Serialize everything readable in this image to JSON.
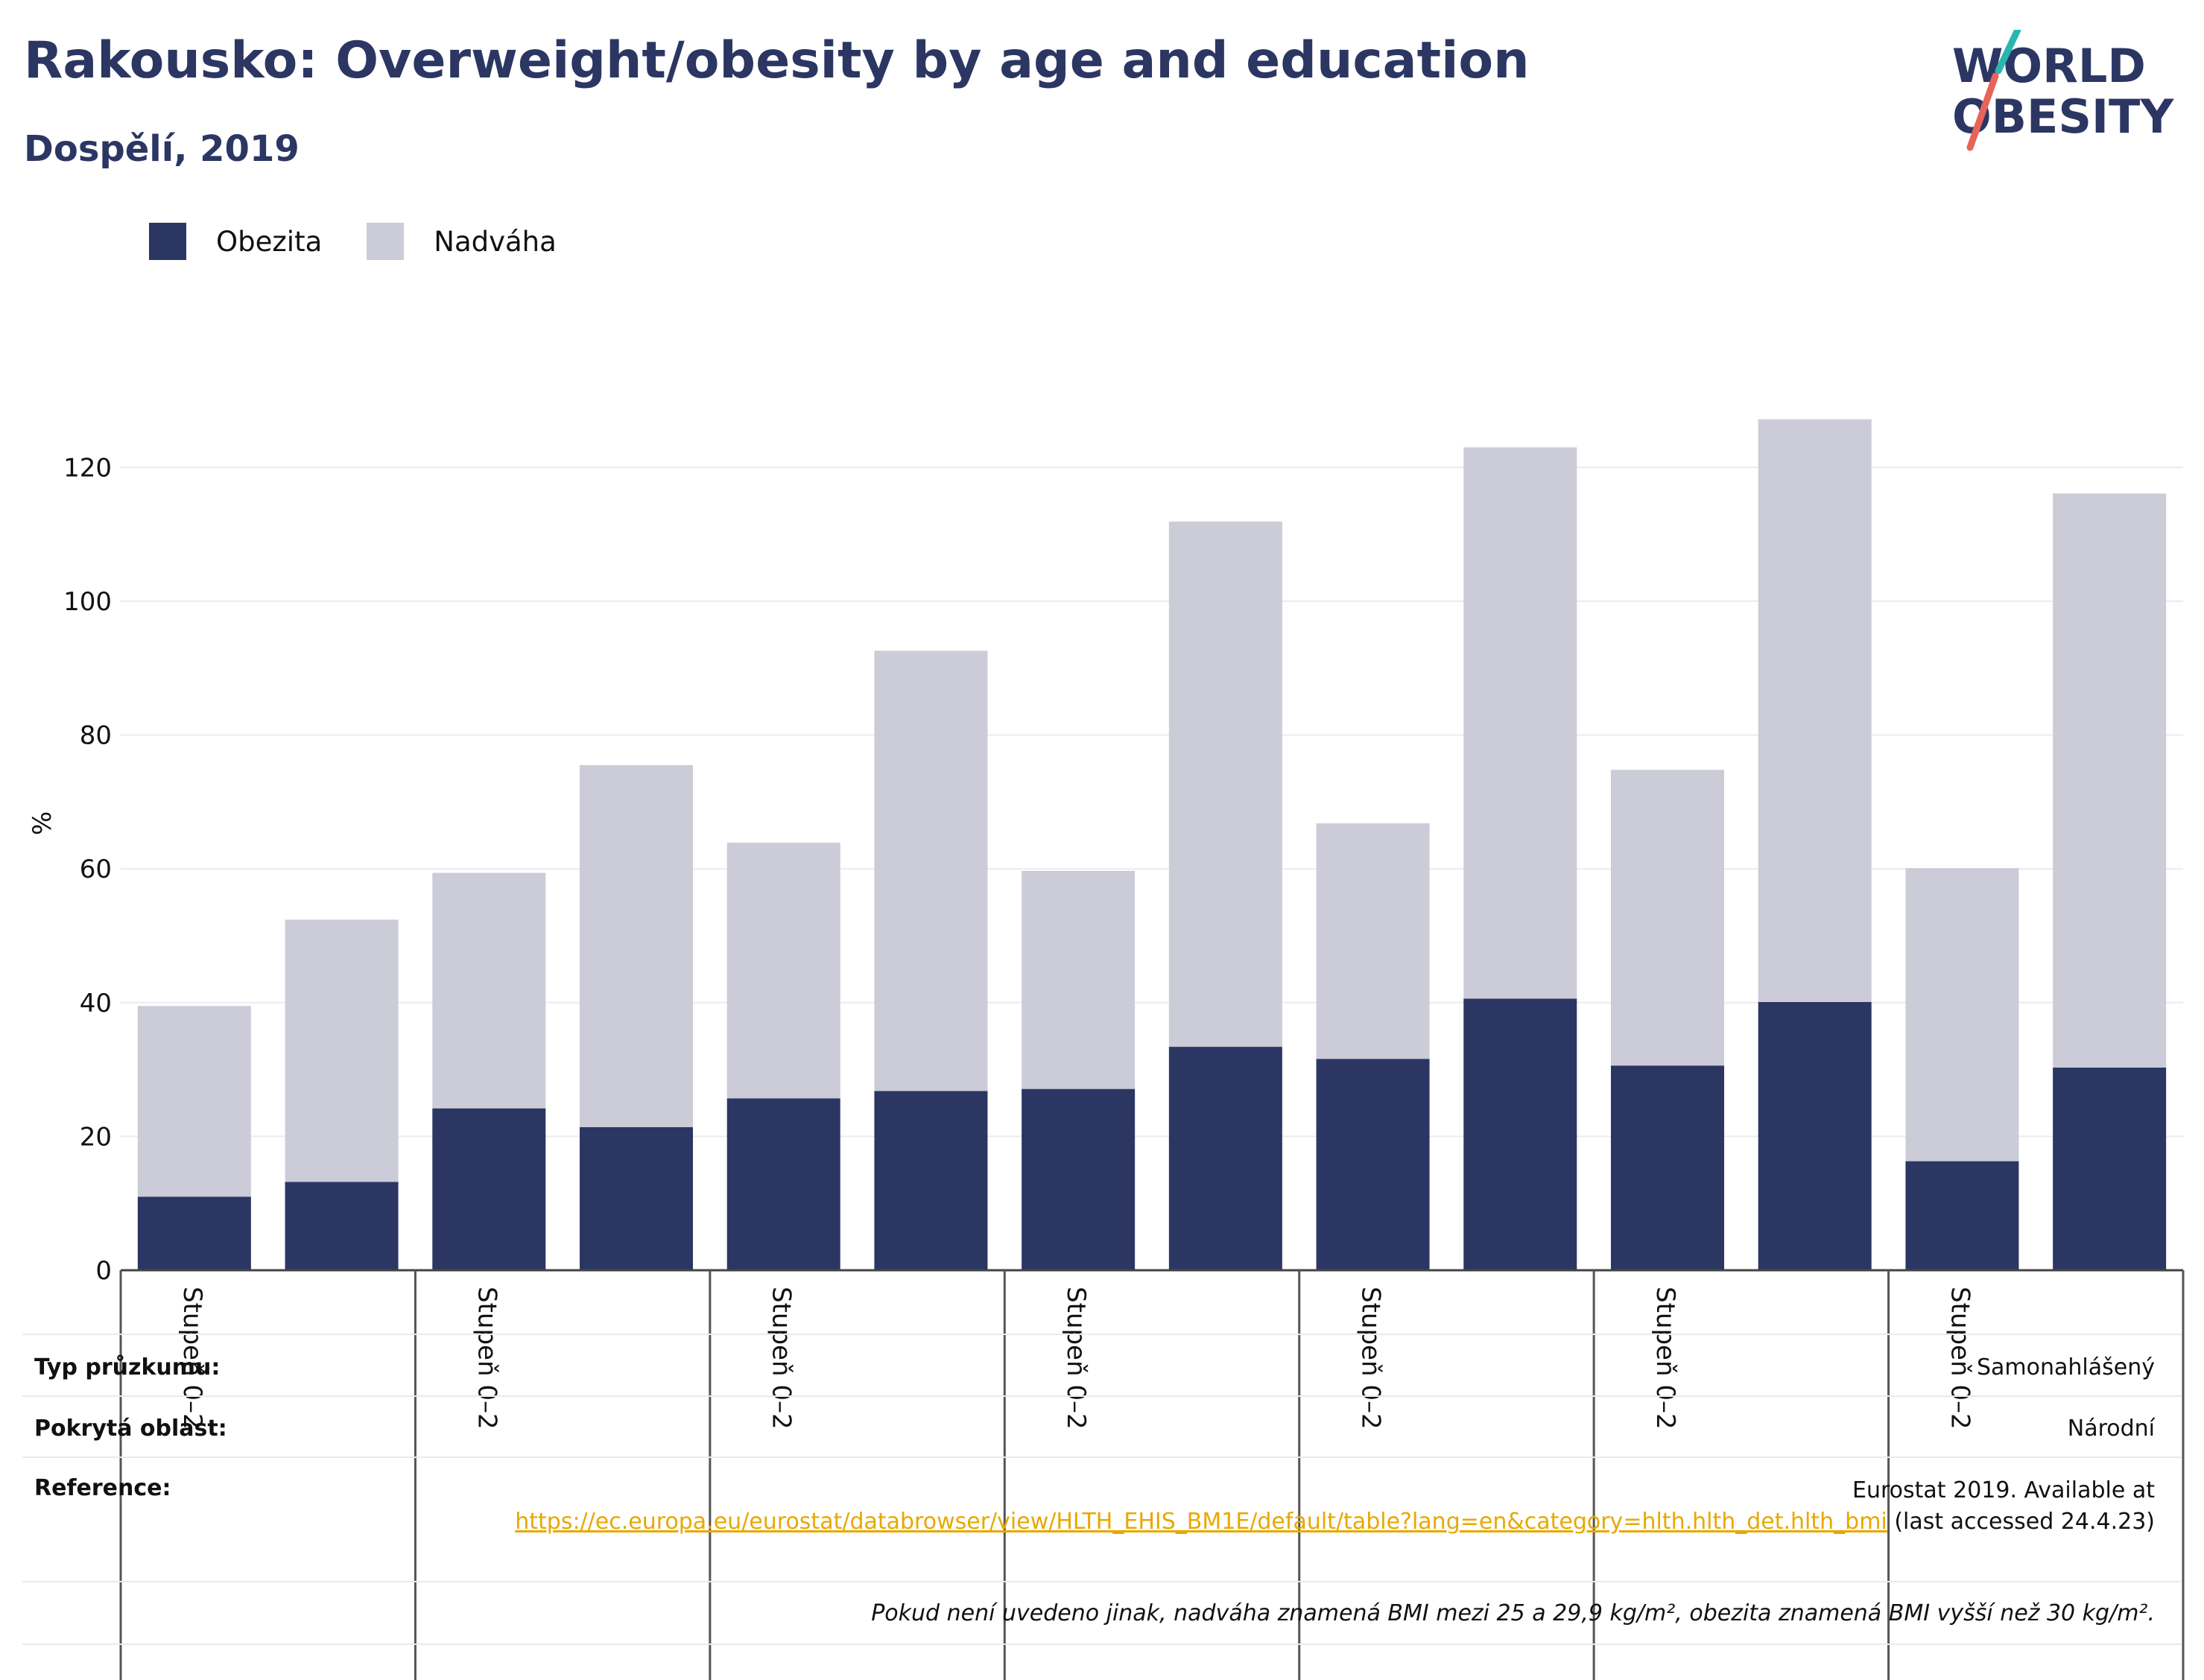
{
  "title": "Rakousko: Overweight/obesity by age and education",
  "subtitle": "Dospělí, 2019",
  "logo": {
    "line1": "WORLD",
    "line2": "OBESITY"
  },
  "colors": {
    "obesity": "#2b3663",
    "overweight": "#cbccd8",
    "accent_teal": "#2ab5b0",
    "accent_red": "#e8635a",
    "link": "#e8a800"
  },
  "chart_data": {
    "type": "bar",
    "stacked": true,
    "ylabel": "%",
    "ylim": [
      0,
      130
    ],
    "yticks": [
      0,
      20,
      40,
      60,
      80,
      100,
      120
    ],
    "grid": true,
    "legend_position": "top-left",
    "categories": [
      "Stupeň 0–2",
      "",
      "Stupeň 0–2",
      "",
      "Stupeň 0–2",
      "",
      "Stupeň 0–2",
      "",
      "Stupeň 0–2",
      "",
      "Stupeň 0–2",
      "",
      "Stupeň 0–2",
      ""
    ],
    "series": [
      {
        "name": "Obezita",
        "color": "#2b3663",
        "values": [
          11.0,
          13.2,
          24.2,
          21.4,
          25.7,
          26.8,
          27.1,
          33.4,
          31.6,
          40.6,
          30.6,
          40.1,
          16.3,
          30.3
        ]
      },
      {
        "name": "Nadváha",
        "color": "#cbccd8",
        "values": [
          28.5,
          39.2,
          35.2,
          54.1,
          38.2,
          65.8,
          32.6,
          78.5,
          35.2,
          82.4,
          44.2,
          87.1,
          43.8,
          85.8
        ]
      }
    ]
  },
  "info": {
    "survey_label": "Typ průzkumu:",
    "survey_value": "Samonahlášený",
    "area_label": "Pokrytá oblast:",
    "area_value": "Národní",
    "reference_label": "Reference:",
    "reference_text": "Eurostat 2019. Available at",
    "reference_url": "https://ec.europa.eu/eurostat/databrowser/view/HLTH_EHIS_BM1E/default/table?lang=en&category=hlth.hlth_det.hlth_bmi",
    "reference_suffix": "(last accessed 24.4.23)",
    "note": "Pokud není uvedeno jinak, nadváha znamená BMI mezi 25 a 29,9 kg/m², obezita znamená BMI vyšší než 30 kg/m²."
  }
}
